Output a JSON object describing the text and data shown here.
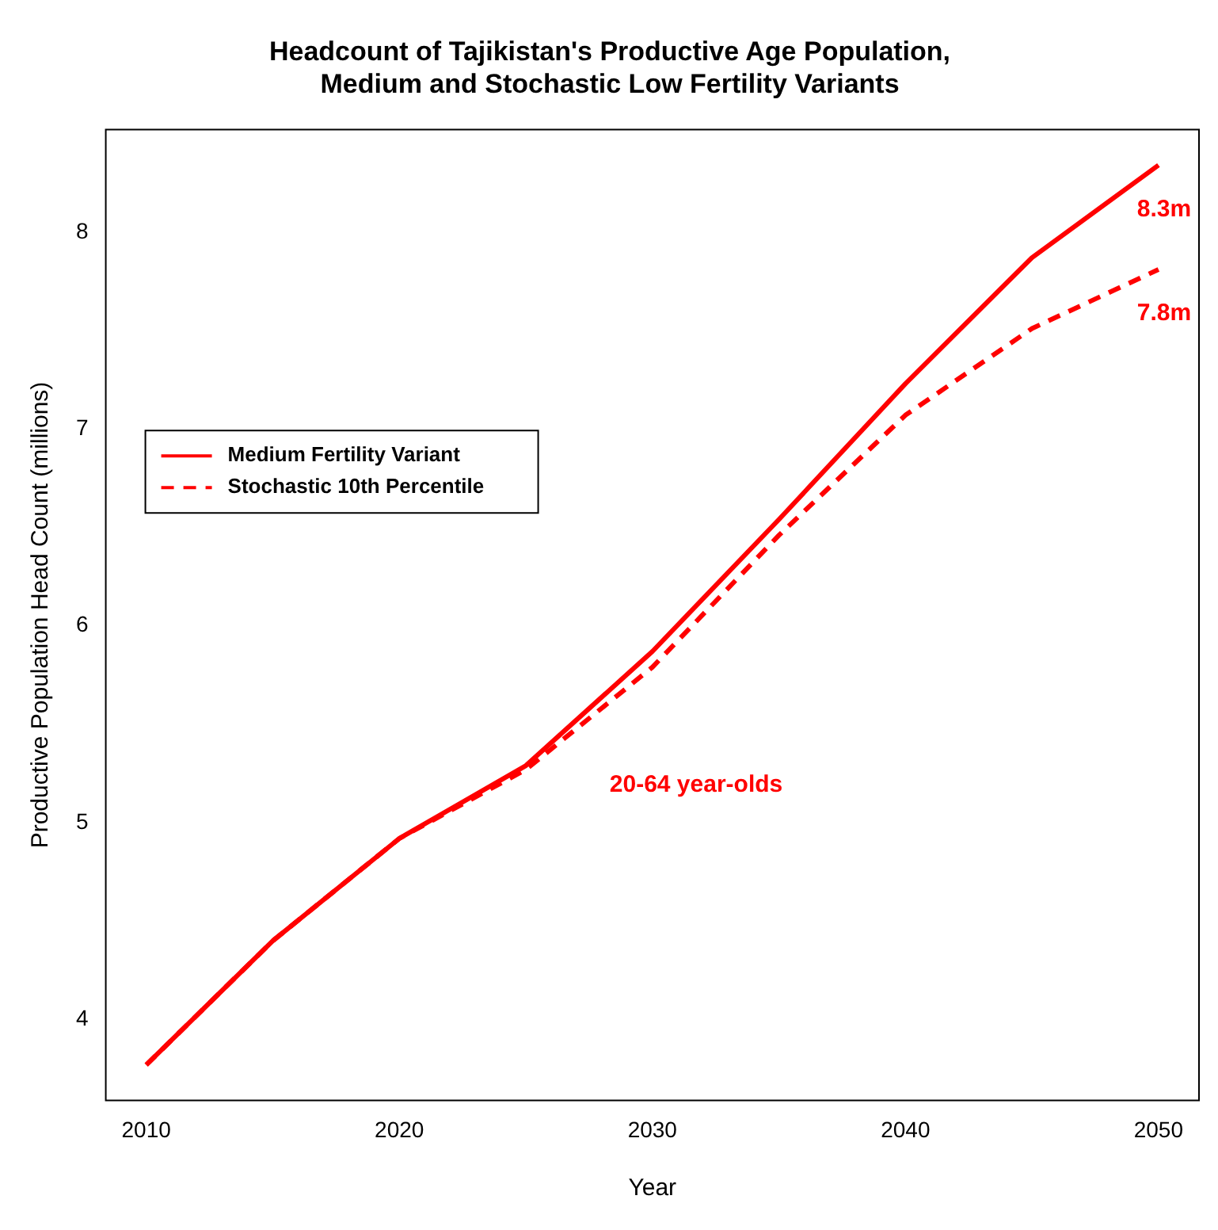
{
  "chart_data": {
    "type": "line",
    "title": "Headcount of Tajikistan's Productive Age Population,\nMedium and Stochastic Low Fertility Variants",
    "xlabel": "Year",
    "ylabel": "Productive Population Head Count (millions)",
    "x": [
      2010,
      2015,
      2020,
      2025,
      2030,
      2035,
      2040,
      2045,
      2050
    ],
    "series": [
      {
        "name": "Medium Fertility Variant",
        "color": "#ff0000",
        "line_style": "solid",
        "values": [
          3.77,
          4.4,
          4.92,
          5.29,
          5.87,
          6.54,
          7.23,
          7.87,
          8.34
        ]
      },
      {
        "name": "Stochastic 10th Percentile",
        "color": "#ff0000",
        "line_style": "dashed",
        "values": [
          3.77,
          4.4,
          4.92,
          5.27,
          5.79,
          6.46,
          7.07,
          7.51,
          7.81
        ]
      }
    ],
    "xlim": [
      2008.4,
      2051.6
    ],
    "xticks": [
      2010,
      2020,
      2030,
      2040,
      2050
    ],
    "ylim": [
      3.59,
      8.52
    ],
    "yticks": [
      4,
      5,
      6,
      7,
      8
    ],
    "grid": false,
    "legend": "left",
    "marker": "none",
    "annotations": [
      "8.3m",
      "7.8m",
      "20-64 year-olds"
    ]
  }
}
